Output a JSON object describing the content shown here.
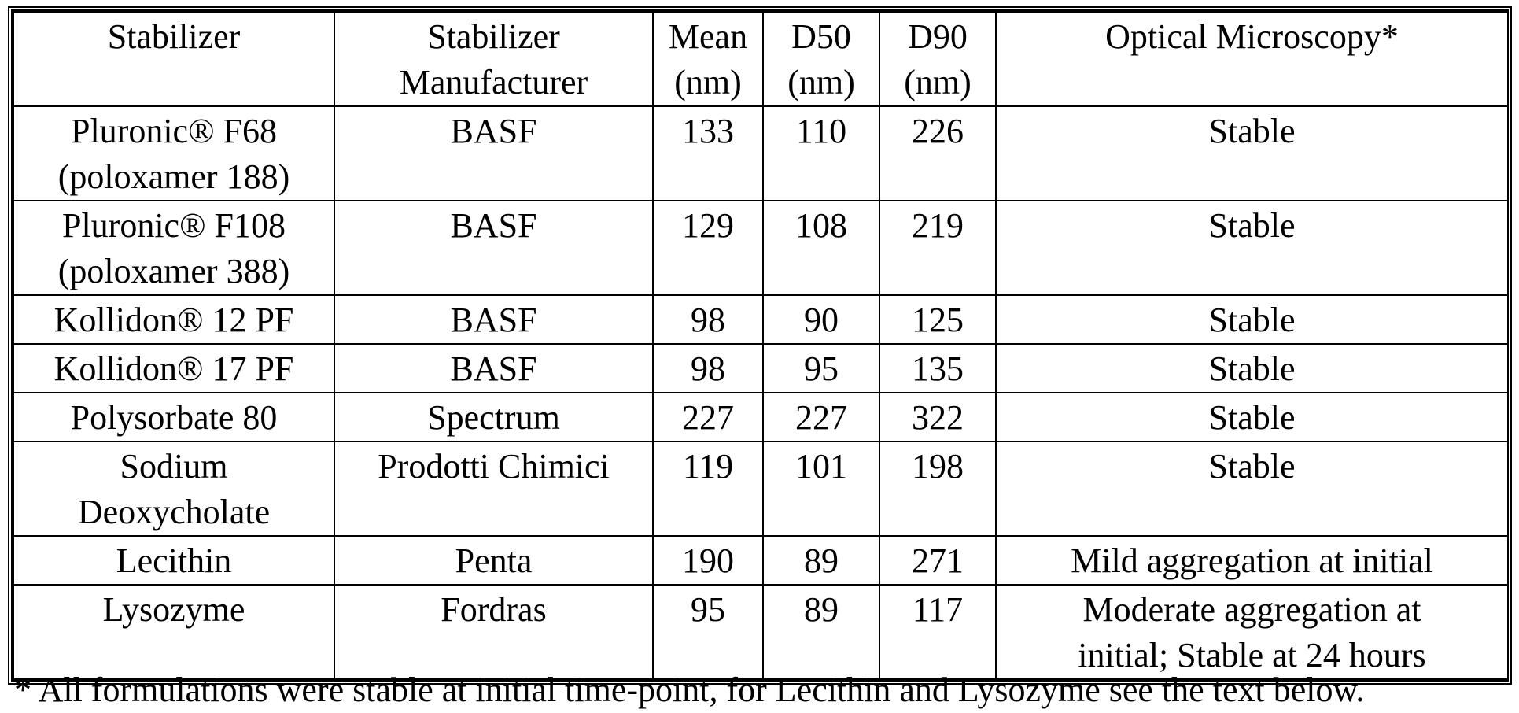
{
  "table": {
    "columns": [
      "Stabilizer",
      "Stabilizer\nManufacturer",
      "Mean\n(nm)",
      "D50\n(nm)",
      "D90\n(nm)",
      "Optical Microscopy*"
    ],
    "rows": [
      [
        "Pluronic® F68\n(poloxamer 188)",
        "BASF",
        "133",
        "110",
        "226",
        "Stable"
      ],
      [
        "Pluronic® F108\n(poloxamer 388)",
        "BASF",
        "129",
        "108",
        "219",
        "Stable"
      ],
      [
        "Kollidon® 12 PF",
        "BASF",
        "98",
        "90",
        "125",
        "Stable"
      ],
      [
        "Kollidon® 17 PF",
        "BASF",
        "98",
        "95",
        "135",
        "Stable"
      ],
      [
        "Polysorbate 80",
        "Spectrum",
        "227",
        "227",
        "322",
        "Stable"
      ],
      [
        "Sodium\nDeoxycholate",
        "Prodotti Chimici",
        "119",
        "101",
        "198",
        "Stable"
      ],
      [
        "Lecithin",
        "Penta",
        "190",
        "89",
        "271",
        "Mild aggregation at initial"
      ],
      [
        "Lysozyme",
        "Fordras",
        "95",
        "89",
        "117",
        "Moderate aggregation at\ninitial; Stable at 24 hours"
      ]
    ]
  },
  "footnote": "* All formulations were stable at initial time-point, for Lecithin and Lysozyme see the text below."
}
